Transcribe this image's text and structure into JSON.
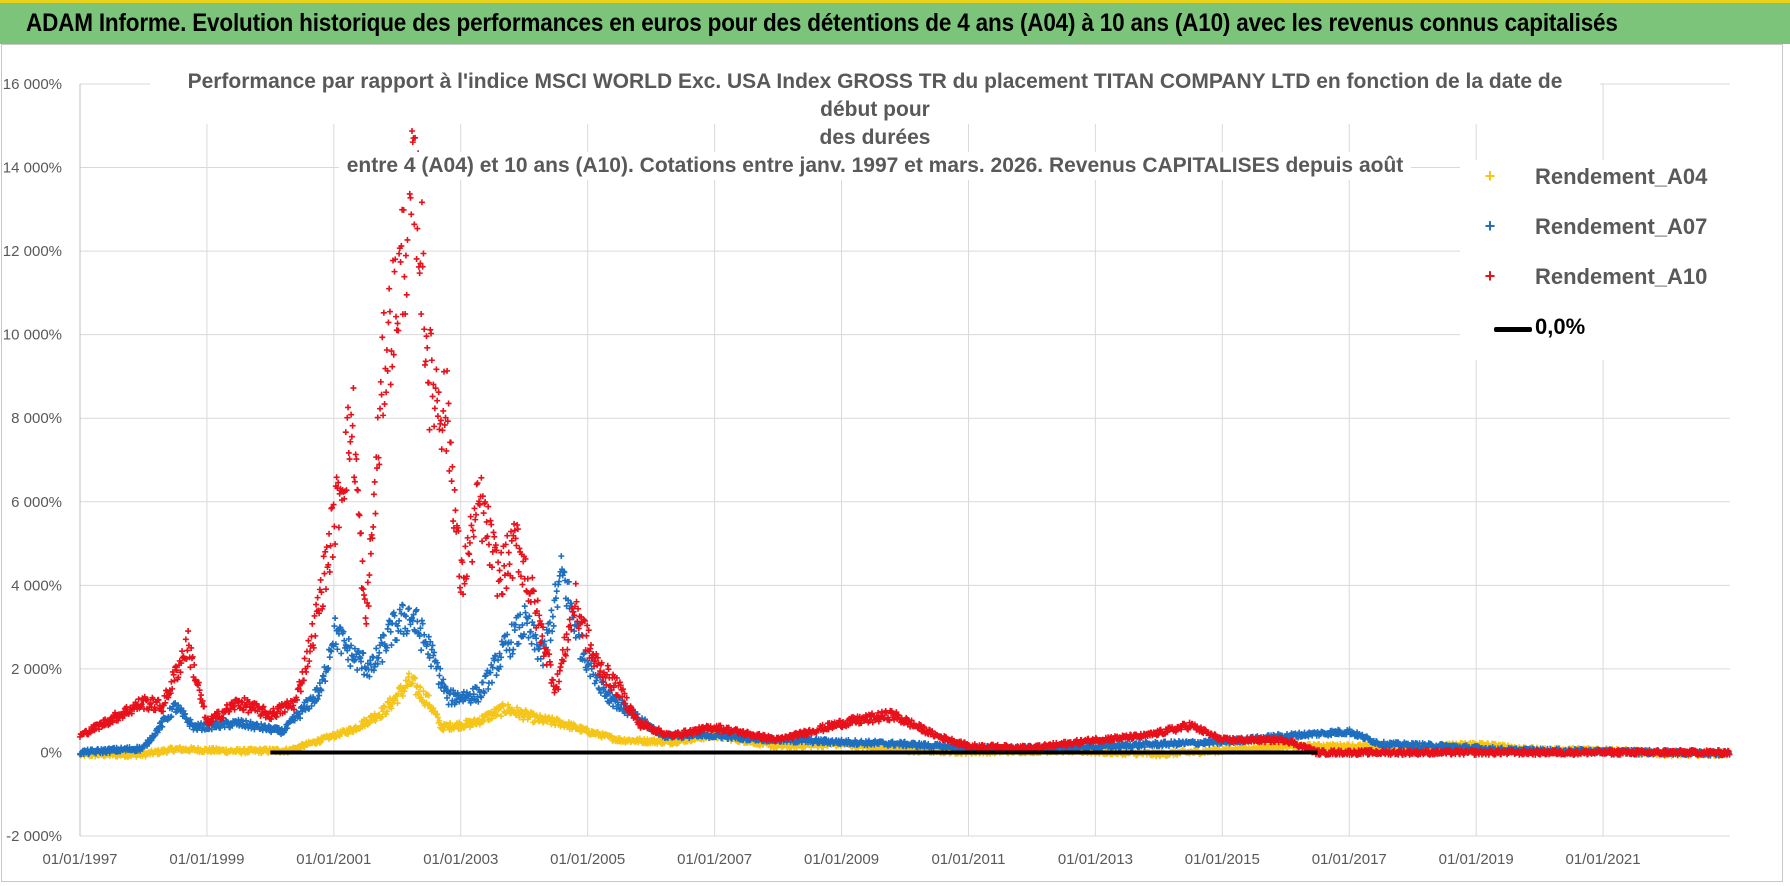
{
  "banner": {
    "title": "ADAM Informe. Evolution historique des performances en euros pour des détentions de 4 ans (A04) à 10 ans (A10) avec les revenus connus capitalisés"
  },
  "colors": {
    "banner_bg": "#7cc47a",
    "a04": "#f5c518",
    "a07": "#1f6fc0",
    "a10": "#e8101a",
    "zero": "#000000"
  },
  "chart_data": {
    "type": "scatter",
    "title_lines": [
      "Performance par rapport à l'indice MSCI WORLD Exc. USA Index GROSS TR  du placement TITAN COMPANY LTD en fonction de la date de début pour",
      "des durées",
      "entre 4 (A04) et 10 ans (A10). Cotations entre janv. 1997 et mars. 2026. Revenus CAPITALISES depuis août"
    ],
    "x_axis": {
      "min": 1997.0,
      "max": 2023.0,
      "tick_values": [
        1997,
        1999,
        2001,
        2003,
        2005,
        2007,
        2009,
        2011,
        2013,
        2015,
        2017,
        2019,
        2021
      ],
      "tick_labels": [
        "01/01/1997",
        "01/01/1999",
        "01/01/2001",
        "01/01/2003",
        "01/01/2005",
        "01/01/2007",
        "01/01/2009",
        "01/01/2011",
        "01/01/2013",
        "01/01/2015",
        "01/01/2017",
        "01/01/2019",
        "01/01/2021"
      ]
    },
    "y_axis": {
      "min": -2000,
      "max": 16000,
      "tick_values": [
        -2000,
        0,
        2000,
        4000,
        6000,
        8000,
        10000,
        12000,
        14000,
        16000
      ],
      "tick_labels": [
        "-2 000%",
        "0%",
        "2 000%",
        "4 000%",
        "6 000%",
        "8 000%",
        "10 000%",
        "12 000%",
        "14 000%",
        "16 000%"
      ],
      "unit": "%"
    },
    "gridlines": true,
    "legend_position": "top-right",
    "series": [
      {
        "name": "Rendement_A04",
        "color": "#f5c518",
        "start": 1997.0,
        "end": 2023.0,
        "points": [
          [
            1997.0,
            -50
          ],
          [
            1998.0,
            -50
          ],
          [
            1998.5,
            80
          ],
          [
            1999.5,
            30
          ],
          [
            2000.3,
            50
          ],
          [
            2000.8,
            300
          ],
          [
            2001.3,
            550
          ],
          [
            2001.8,
            1000
          ],
          [
            2002.2,
            1700
          ],
          [
            2002.5,
            1200
          ],
          [
            2002.7,
            600
          ],
          [
            2003.2,
            700
          ],
          [
            2003.7,
            1050
          ],
          [
            2004.2,
            800
          ],
          [
            2004.6,
            700
          ],
          [
            2005.0,
            500
          ],
          [
            2005.5,
            300
          ],
          [
            2006.3,
            250
          ],
          [
            2007.0,
            400
          ],
          [
            2008.0,
            150
          ],
          [
            2009.0,
            200
          ],
          [
            2010.0,
            50
          ],
          [
            2011.0,
            20
          ],
          [
            2012.5,
            50
          ],
          [
            2014.0,
            -40
          ],
          [
            2015.0,
            50
          ],
          [
            2016.0,
            150
          ],
          [
            2017.0,
            150
          ],
          [
            2018.0,
            100
          ],
          [
            2019.0,
            200
          ],
          [
            2020.0,
            50
          ],
          [
            2021.0,
            60
          ],
          [
            2022.0,
            -30
          ],
          [
            2023.0,
            -30
          ]
        ]
      },
      {
        "name": "Rendement_A07",
        "color": "#1f6fc0",
        "start": 1997.0,
        "end": 2023.0,
        "points": [
          [
            1997.0,
            0
          ],
          [
            1998.0,
            100
          ],
          [
            1998.5,
            1100
          ],
          [
            1998.8,
            600
          ],
          [
            1999.5,
            700
          ],
          [
            2000.2,
            500
          ],
          [
            2000.8,
            1500
          ],
          [
            2001.0,
            2900
          ],
          [
            2001.3,
            2300
          ],
          [
            2001.6,
            2000
          ],
          [
            2001.9,
            2900
          ],
          [
            2002.2,
            3300
          ],
          [
            2002.5,
            2500
          ],
          [
            2002.8,
            1300
          ],
          [
            2003.3,
            1400
          ],
          [
            2003.7,
            2500
          ],
          [
            2004.0,
            3100
          ],
          [
            2004.3,
            2300
          ],
          [
            2004.6,
            4300
          ],
          [
            2004.9,
            2500
          ],
          [
            2005.3,
            1400
          ],
          [
            2005.8,
            800
          ],
          [
            2006.2,
            400
          ],
          [
            2007.0,
            400
          ],
          [
            2008.0,
            300
          ],
          [
            2009.0,
            250
          ],
          [
            2010.0,
            200
          ],
          [
            2011.0,
            100
          ],
          [
            2012.5,
            100
          ],
          [
            2014.0,
            200
          ],
          [
            2015.0,
            250
          ],
          [
            2016.0,
            400
          ],
          [
            2017.0,
            500
          ],
          [
            2017.5,
            200
          ],
          [
            2018.5,
            150
          ],
          [
            2019.5,
            50
          ],
          [
            2021.0,
            20
          ],
          [
            2023.0,
            -20
          ]
        ]
      },
      {
        "name": "Rendement_A10",
        "color": "#e8101a",
        "start": 1997.0,
        "end": 2023.0,
        "points": [
          [
            1997.0,
            400
          ],
          [
            1998.0,
            1200
          ],
          [
            1998.3,
            1100
          ],
          [
            1998.7,
            2600
          ],
          [
            1999.0,
            700
          ],
          [
            1999.5,
            1200
          ],
          [
            2000.0,
            900
          ],
          [
            2000.4,
            1200
          ],
          [
            2000.7,
            3000
          ],
          [
            2001.0,
            5500
          ],
          [
            2001.3,
            8000
          ],
          [
            2001.5,
            3000
          ],
          [
            2001.8,
            9500
          ],
          [
            2002.0,
            11000
          ],
          [
            2002.3,
            13700
          ],
          [
            2002.5,
            9000
          ],
          [
            2002.8,
            8000
          ],
          [
            2003.0,
            4000
          ],
          [
            2003.3,
            6000
          ],
          [
            2003.6,
            4200
          ],
          [
            2003.9,
            5000
          ],
          [
            2004.2,
            3300
          ],
          [
            2004.5,
            1500
          ],
          [
            2004.8,
            3600
          ],
          [
            2005.1,
            2200
          ],
          [
            2005.5,
            1500
          ],
          [
            2005.8,
            700
          ],
          [
            2006.3,
            400
          ],
          [
            2007.0,
            600
          ],
          [
            2008.0,
            300
          ],
          [
            2009.0,
            700
          ],
          [
            2009.8,
            900
          ],
          [
            2010.5,
            400
          ],
          [
            2011.0,
            150
          ],
          [
            2012.0,
            100
          ],
          [
            2013.0,
            300
          ],
          [
            2013.8,
            400
          ],
          [
            2014.5,
            650
          ],
          [
            2015.0,
            300
          ],
          [
            2016.0,
            300
          ],
          [
            2016.5,
            0
          ],
          [
            2023.0,
            0
          ]
        ]
      },
      {
        "name": "0,0%",
        "color": "#000000",
        "type": "line",
        "points": [
          [
            2000.0,
            0
          ],
          [
            2016.5,
            0
          ]
        ]
      }
    ]
  }
}
